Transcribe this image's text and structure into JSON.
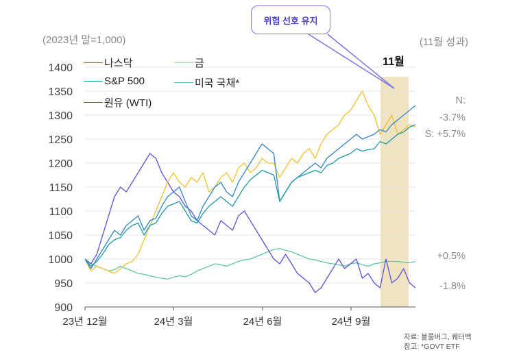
{
  "unit_left": "(2023년 말=1,000)",
  "unit_right": "(11월 성과)",
  "callout": "위험 선호 유지",
  "highlight_label": "11월",
  "annotations": {
    "nasdaq_key": "N:",
    "nasdaq_value": "-3.7%",
    "sp_value": "S: +5.7%",
    "treasury_value": "+0.5%",
    "wti_value": "-1.8%"
  },
  "source": [
    "자료: 블룸버그, 퀘터백",
    "참고: *GOVT ETF"
  ],
  "colors": {
    "nasdaq": "#2f86c8",
    "gold": "#f2c12e",
    "sp500": "#1a9ba5",
    "treasury": "#5cc8a0",
    "wti": "#5b52d6",
    "highlight": "#efe3c2",
    "callout": "#7b73e6"
  },
  "chart_data": {
    "type": "line",
    "ylim": [
      900,
      1400
    ],
    "yticks": [
      900,
      950,
      1000,
      1050,
      1100,
      1150,
      1200,
      1250,
      1300,
      1350,
      1400
    ],
    "xticks": [
      "23년 12월",
      "24년 3월",
      "24년 6월",
      "24년 9월"
    ],
    "highlight_period": "11월",
    "series": [
      {
        "name": "나스닥",
        "key": "nasdaq",
        "values": [
          1000,
          980,
          1000,
          1020,
          1040,
          1060,
          1050,
          1070,
          1080,
          1090,
          1060,
          1080,
          1085,
          1110,
          1130,
          1140,
          1150,
          1120,
          1090,
          1080,
          1110,
          1130,
          1150,
          1160,
          1140,
          1130,
          1160,
          1180,
          1200,
          1220,
          1240,
          1230,
          1220,
          1120,
          1140,
          1160,
          1170,
          1180,
          1190,
          1200,
          1190,
          1210,
          1220,
          1230,
          1240,
          1250,
          1260,
          1250,
          1255,
          1260,
          1270,
          1265,
          1280,
          1290,
          1300,
          1310,
          1320
        ]
      },
      {
        "name": "금",
        "key": "gold",
        "values": [
          1000,
          975,
          985,
          980,
          975,
          970,
          980,
          990,
          995,
          1010,
          1040,
          1070,
          1100,
          1130,
          1160,
          1180,
          1160,
          1150,
          1170,
          1160,
          1180,
          1140,
          1150,
          1170,
          1180,
          1160,
          1190,
          1200,
          1180,
          1190,
          1210,
          1200,
          1200,
          1170,
          1190,
          1210,
          1200,
          1220,
          1230,
          1210,
          1240,
          1260,
          1270,
          1280,
          1300,
          1310,
          1330,
          1350,
          1320,
          1300,
          1260,
          1280,
          1300,
          1260,
          1270,
          1280,
          1275
        ]
      },
      {
        "name": "S&P 500",
        "key": "sp500",
        "values": [
          1000,
          985,
          995,
          1010,
          1030,
          1040,
          1045,
          1060,
          1070,
          1075,
          1050,
          1070,
          1075,
          1095,
          1110,
          1115,
          1120,
          1100,
          1080,
          1075,
          1095,
          1110,
          1120,
          1130,
          1120,
          1110,
          1130,
          1150,
          1165,
          1175,
          1185,
          1180,
          1175,
          1120,
          1140,
          1160,
          1170,
          1175,
          1180,
          1185,
          1180,
          1195,
          1200,
          1210,
          1215,
          1220,
          1230,
          1225,
          1228,
          1230,
          1245,
          1240,
          1250,
          1260,
          1265,
          1275,
          1280
        ]
      },
      {
        "name": "미국 국채*",
        "key": "treasury",
        "values": [
          1000,
          990,
          985,
          980,
          975,
          978,
          985,
          980,
          975,
          970,
          968,
          965,
          962,
          960,
          958,
          962,
          965,
          963,
          968,
          975,
          980,
          985,
          990,
          988,
          985,
          990,
          995,
          998,
          1000,
          1005,
          1010,
          1015,
          1020,
          1022,
          1018,
          1015,
          1010,
          1005,
          1000,
          998,
          995,
          992,
          990,
          988,
          985,
          990,
          992,
          988,
          985,
          990,
          992,
          995,
          995,
          995,
          993,
          992,
          995
        ]
      },
      {
        "name": "원유 (WTI)",
        "key": "wti",
        "values": [
          1000,
          990,
          1010,
          1050,
          1090,
          1130,
          1150,
          1140,
          1160,
          1180,
          1200,
          1220,
          1210,
          1180,
          1160,
          1140,
          1130,
          1110,
          1100,
          1080,
          1070,
          1060,
          1050,
          1080,
          1070,
          1060,
          1090,
          1100,
          1080,
          1060,
          1040,
          1020,
          1000,
          990,
          1010,
          990,
          970,
          960,
          950,
          930,
          940,
          960,
          980,
          1000,
          980,
          990,
          1000,
          960,
          970,
          950,
          940,
          1000,
          950,
          960,
          980,
          950,
          940
        ]
      }
    ]
  }
}
